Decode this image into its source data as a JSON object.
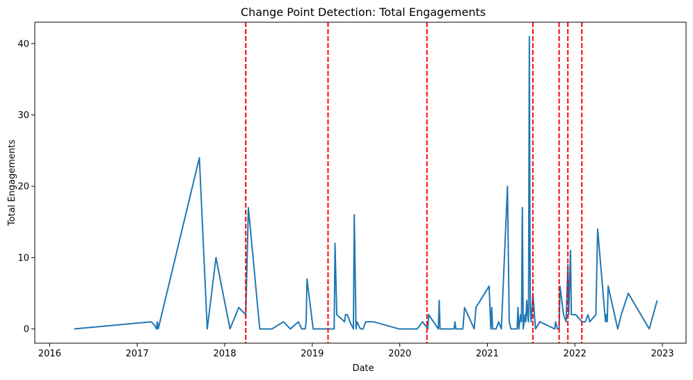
{
  "chart_data": {
    "type": "line",
    "title": "Change Point Detection: Total Engagements",
    "xlabel": "Date",
    "ylabel": "Total Engagements",
    "xlim": [
      2015.83,
      2023.27
    ],
    "ylim": [
      -2.0,
      43.0
    ],
    "xticks": [
      2016,
      2017,
      2018,
      2019,
      2020,
      2021,
      2022,
      2023
    ],
    "xtick_labels": [
      "2016",
      "2017",
      "2018",
      "2019",
      "2020",
      "2021",
      "2022",
      "2023"
    ],
    "yticks": [
      0,
      10,
      20,
      30,
      40
    ],
    "ytick_labels": [
      "0",
      "10",
      "20",
      "30",
      "40"
    ],
    "grid": false,
    "legend": "none",
    "series": [
      {
        "color": "#1f77b4",
        "points": [
          [
            2016.28,
            0
          ],
          [
            2017.16,
            1
          ],
          [
            2017.2,
            0.5
          ],
          [
            2017.22,
            0
          ],
          [
            2017.23,
            1
          ],
          [
            2017.24,
            0
          ],
          [
            2017.71,
            24
          ],
          [
            2017.8,
            0
          ],
          [
            2017.9,
            10
          ],
          [
            2018.06,
            0
          ],
          [
            2018.16,
            3
          ],
          [
            2018.24,
            2
          ],
          [
            2018.27,
            17
          ],
          [
            2018.4,
            0
          ],
          [
            2018.54,
            0
          ],
          [
            2018.67,
            1
          ],
          [
            2018.75,
            0
          ],
          [
            2018.84,
            1
          ],
          [
            2018.88,
            0
          ],
          [
            2018.92,
            0
          ],
          [
            2018.93,
            1
          ],
          [
            2018.94,
            7
          ],
          [
            2019.01,
            0
          ],
          [
            2019.25,
            0
          ],
          [
            2019.26,
            12
          ],
          [
            2019.28,
            2
          ],
          [
            2019.37,
            1
          ],
          [
            2019.38,
            2
          ],
          [
            2019.4,
            2
          ],
          [
            2019.43,
            1
          ],
          [
            2019.47,
            0
          ],
          [
            2019.48,
            16
          ],
          [
            2019.5,
            0
          ],
          [
            2019.51,
            1
          ],
          [
            2019.55,
            0
          ],
          [
            2019.58,
            0
          ],
          [
            2019.61,
            1
          ],
          [
            2019.7,
            1
          ],
          [
            2019.99,
            0
          ],
          [
            2020.2,
            0
          ],
          [
            2020.26,
            1
          ],
          [
            2020.32,
            0
          ],
          [
            2020.33,
            2
          ],
          [
            2020.44,
            0
          ],
          [
            2020.45,
            4
          ],
          [
            2020.46,
            0
          ],
          [
            2020.62,
            0
          ],
          [
            2020.63,
            1
          ],
          [
            2020.64,
            0
          ],
          [
            2020.72,
            0
          ],
          [
            2020.74,
            3
          ],
          [
            2020.85,
            0
          ],
          [
            2020.87,
            3
          ],
          [
            2021.02,
            6
          ],
          [
            2021.04,
            0
          ],
          [
            2021.05,
            3
          ],
          [
            2021.06,
            0
          ],
          [
            2021.1,
            0
          ],
          [
            2021.13,
            1
          ],
          [
            2021.16,
            0
          ],
          [
            2021.23,
            20
          ],
          [
            2021.25,
            1
          ],
          [
            2021.27,
            0
          ],
          [
            2021.34,
            0
          ],
          [
            2021.35,
            3
          ],
          [
            2021.36,
            0
          ],
          [
            2021.38,
            2
          ],
          [
            2021.39,
            1
          ],
          [
            2021.4,
            17
          ],
          [
            2021.41,
            0
          ],
          [
            2021.43,
            2
          ],
          [
            2021.44,
            1
          ],
          [
            2021.45,
            4
          ],
          [
            2021.46,
            2
          ],
          [
            2021.47,
            1
          ],
          [
            2021.48,
            41
          ],
          [
            2021.49,
            3
          ],
          [
            2021.5,
            1
          ],
          [
            2021.52,
            5
          ],
          [
            2021.55,
            0
          ],
          [
            2021.6,
            1
          ],
          [
            2021.77,
            0
          ],
          [
            2021.78,
            1
          ],
          [
            2021.8,
            0
          ],
          [
            2021.82,
            0
          ],
          [
            2021.83,
            6
          ],
          [
            2021.87,
            2
          ],
          [
            2021.9,
            1
          ],
          [
            2021.92,
            9
          ],
          [
            2021.93,
            2
          ],
          [
            2021.95,
            11
          ],
          [
            2021.96,
            2
          ],
          [
            2022.01,
            2
          ],
          [
            2022.08,
            1
          ],
          [
            2022.12,
            1
          ],
          [
            2022.15,
            2
          ],
          [
            2022.17,
            1
          ],
          [
            2022.24,
            2
          ],
          [
            2022.26,
            14
          ],
          [
            2022.35,
            1
          ],
          [
            2022.36,
            2
          ],
          [
            2022.37,
            1
          ],
          [
            2022.38,
            6
          ],
          [
            2022.49,
            0
          ],
          [
            2022.53,
            2
          ],
          [
            2022.61,
            5
          ],
          [
            2022.85,
            0
          ],
          [
            2022.94,
            4
          ]
        ]
      }
    ],
    "change_points": [
      2018.24,
      2019.18,
      2020.31,
      2021.52,
      2021.82,
      2021.92,
      2022.08
    ],
    "change_point_color": "#ff0000"
  }
}
